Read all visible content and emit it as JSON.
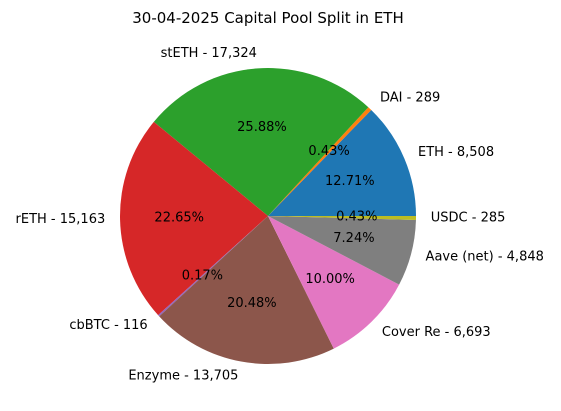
{
  "chart_data": {
    "type": "pie",
    "title": "30-04-2025 Capital Pool Split in ETH",
    "slices": [
      {
        "label": "ETH - 8,508",
        "value": 8508,
        "percent_label": "12.71%",
        "color": "#1f77b4"
      },
      {
        "label": "DAI - 289",
        "value": 289,
        "percent_label": "0.43%",
        "color": "#ff7f0e"
      },
      {
        "label": "stETH - 17,324",
        "value": 17324,
        "percent_label": "25.88%",
        "color": "#2ca02c"
      },
      {
        "label": "rETH - 15,163",
        "value": 15163,
        "percent_label": "22.65%",
        "color": "#d62728"
      },
      {
        "label": "cbBTC - 116",
        "value": 116,
        "percent_label": "0.17%",
        "color": "#9467bd"
      },
      {
        "label": "Enzyme - 13,705",
        "value": 13705,
        "percent_label": "20.48%",
        "color": "#8c564b"
      },
      {
        "label": "Cover Re - 6,693",
        "value": 6693,
        "percent_label": "10.00%",
        "color": "#e377c2"
      },
      {
        "label": "Aave (net) - 4,848",
        "value": 4848,
        "percent_label": "7.24%",
        "color": "#7f7f7f"
      },
      {
        "label": "USDC - 285",
        "value": 285,
        "percent_label": "0.43%",
        "color": "#bcbd22"
      }
    ]
  }
}
